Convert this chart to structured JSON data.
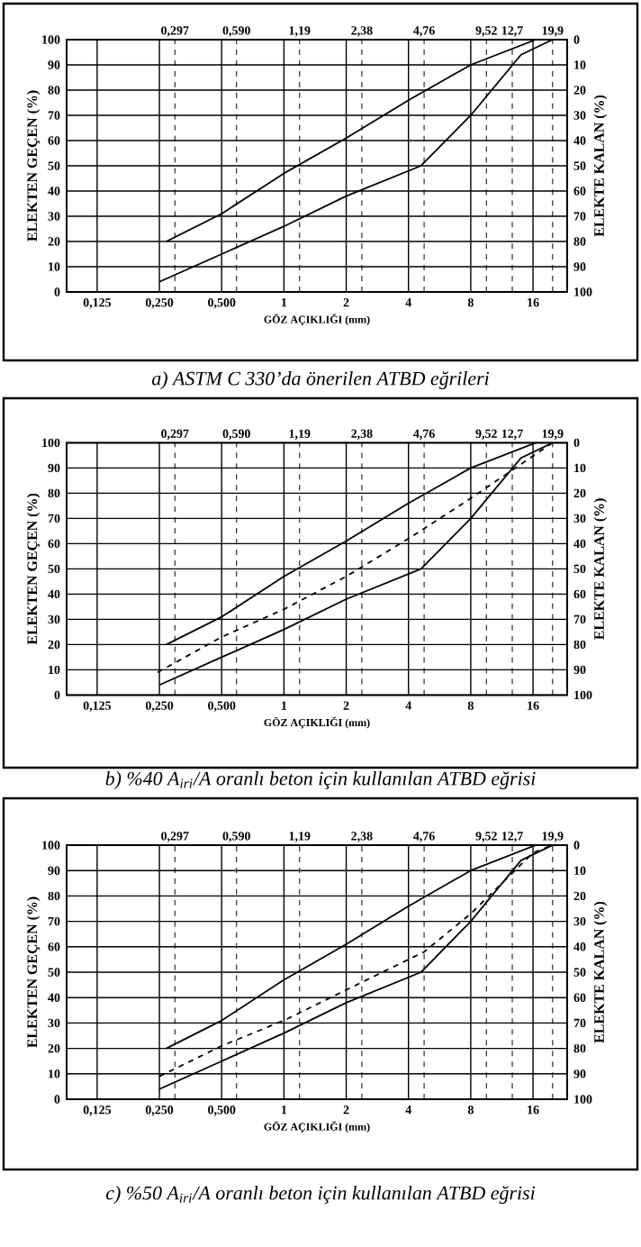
{
  "chart_data": [
    {
      "type": "line",
      "title": "a) ASTM C 330’da önerilen ATBD eğrileri",
      "xlabel": "GÖZ AÇIKLIĞI (mm)",
      "ylabel": "ELEKTEN GEÇEN (%)",
      "y2label": "ELEKTE KALAN (%)",
      "log": "x",
      "grid": true,
      "marker": "none",
      "xlim": [
        0.089,
        23.4
      ],
      "xticks": [
        {
          "value": 0.125,
          "label": "0,125"
        },
        {
          "value": 0.25,
          "label": "0,250"
        },
        {
          "value": 0.5,
          "label": "0,500"
        },
        1,
        2,
        4,
        8,
        16
      ],
      "ylim": [
        0,
        100
      ],
      "yticks": [
        0,
        10,
        20,
        30,
        40,
        50,
        60,
        70,
        80,
        90,
        100
      ],
      "y2lim": [
        100,
        0
      ],
      "y2ticks": [
        0,
        10,
        20,
        30,
        40,
        50,
        60,
        70,
        80,
        90,
        100
      ],
      "ref_lines": [
        {
          "axis": "x",
          "value": 0.297,
          "label": "0,297",
          "line_style": "dashed"
        },
        {
          "axis": "x",
          "value": 0.59,
          "label": "0,590",
          "line_style": "dashed"
        },
        {
          "axis": "x",
          "value": 1.19,
          "label": "1,19",
          "line_style": "dashed"
        },
        {
          "axis": "x",
          "value": 2.38,
          "label": "2,38",
          "line_style": "dashed"
        },
        {
          "axis": "x",
          "value": 4.76,
          "label": "4,76",
          "line_style": "dashed"
        },
        {
          "axis": "x",
          "value": 9.52,
          "label": "9,52",
          "line_style": "dashed"
        },
        {
          "axis": "x",
          "value": 12.7,
          "label": "12,7",
          "line_style": "dashed"
        },
        {
          "axis": "x",
          "value": 19.9,
          "label": "19,9",
          "line_style": "dashed"
        }
      ],
      "series": [
        {
          "color": "#000000",
          "line_style": "solid",
          "x": [
            0.27,
            0.5,
            1,
            2,
            4,
            8,
            16.5
          ],
          "values": [
            20,
            31,
            47,
            61,
            76,
            90,
            100
          ]
        },
        {
          "color": "#000000",
          "line_style": "solid",
          "x": [
            0.25,
            0.5,
            1,
            2,
            4.6,
            8,
            14,
            19.9
          ],
          "values": [
            4,
            15,
            26,
            38,
            50,
            70,
            94,
            100
          ]
        }
      ]
    },
    {
      "type": "line",
      "title": "b) %40 A$_{iri}$/A oranlı beton için kullanılan ATBD eğrisi",
      "xlabel": "GÖZ AÇIKLIĞI (mm)",
      "ylabel": "ELEKTEN GEÇEN (%)",
      "y2label": "ELEKTE KALAN (%)",
      "log": "x",
      "grid": true,
      "marker": "none",
      "xlim": [
        0.089,
        23.4
      ],
      "xticks": [
        {
          "value": 0.125,
          "label": "0,125"
        },
        {
          "value": 0.25,
          "label": "0,250"
        },
        {
          "value": 0.5,
          "label": "0,500"
        },
        1,
        2,
        4,
        8,
        16
      ],
      "ylim": [
        0,
        100
      ],
      "yticks": [
        0,
        10,
        20,
        30,
        40,
        50,
        60,
        70,
        80,
        90,
        100
      ],
      "y2lim": [
        100,
        0
      ],
      "y2ticks": [
        0,
        10,
        20,
        30,
        40,
        50,
        60,
        70,
        80,
        90,
        100
      ],
      "ref_lines": [
        {
          "axis": "x",
          "value": 0.297,
          "label": "0,297",
          "line_style": "dashed"
        },
        {
          "axis": "x",
          "value": 0.59,
          "label": "0,590",
          "line_style": "dashed"
        },
        {
          "axis": "x",
          "value": 1.19,
          "label": "1,19",
          "line_style": "dashed"
        },
        {
          "axis": "x",
          "value": 2.38,
          "label": "2,38",
          "line_style": "dashed"
        },
        {
          "axis": "x",
          "value": 4.76,
          "label": "4,76",
          "line_style": "dashed"
        },
        {
          "axis": "x",
          "value": 9.52,
          "label": "9,52",
          "line_style": "dashed"
        },
        {
          "axis": "x",
          "value": 12.7,
          "label": "12,7",
          "line_style": "dashed"
        },
        {
          "axis": "x",
          "value": 19.9,
          "label": "19,9",
          "line_style": "dashed"
        }
      ],
      "series": [
        {
          "color": "#000000",
          "line_style": "solid",
          "x": [
            0.27,
            0.5,
            1,
            2,
            4,
            8,
            16.5
          ],
          "values": [
            20,
            31,
            47,
            61,
            76,
            90,
            100
          ]
        },
        {
          "color": "#000000",
          "line_style": "dashed",
          "x": [
            0.245,
            0.5,
            1,
            2,
            4,
            8,
            19.9
          ],
          "values": [
            9,
            23,
            34,
            47,
            62,
            78,
            100
          ]
        },
        {
          "color": "#000000",
          "line_style": "solid",
          "x": [
            0.25,
            0.5,
            1,
            2,
            4.6,
            8,
            14,
            19.9
          ],
          "values": [
            4,
            15,
            26,
            38,
            50,
            70,
            94,
            100
          ]
        }
      ]
    },
    {
      "type": "line",
      "title": "c) %50 A$_{iri}$/A oranlı beton için kullanılan ATBD eğrisi",
      "xlabel": "GÖZ AÇIKLIĞI (mm)",
      "ylabel": "ELEKTEN GEÇEN (%)",
      "y2label": "ELEKTE KALAN (%)",
      "log": "x",
      "grid": true,
      "marker": "none",
      "xlim": [
        0.089,
        23.4
      ],
      "xticks": [
        {
          "value": 0.125,
          "label": "0,125"
        },
        {
          "value": 0.25,
          "label": "0,250"
        },
        {
          "value": 0.5,
          "label": "0,500"
        },
        1,
        2,
        4,
        8,
        16
      ],
      "ylim": [
        0,
        100
      ],
      "yticks": [
        0,
        10,
        20,
        30,
        40,
        50,
        60,
        70,
        80,
        90,
        100
      ],
      "y2lim": [
        100,
        0
      ],
      "y2ticks": [
        0,
        10,
        20,
        30,
        40,
        50,
        60,
        70,
        80,
        90,
        100
      ],
      "ref_lines": [
        {
          "axis": "x",
          "value": 0.297,
          "label": "0,297",
          "line_style": "dashed"
        },
        {
          "axis": "x",
          "value": 0.59,
          "label": "0,590",
          "line_style": "dashed"
        },
        {
          "axis": "x",
          "value": 1.19,
          "label": "1,19",
          "line_style": "dashed"
        },
        {
          "axis": "x",
          "value": 2.38,
          "label": "2,38",
          "line_style": "dashed"
        },
        {
          "axis": "x",
          "value": 4.76,
          "label": "4,76",
          "line_style": "dashed"
        },
        {
          "axis": "x",
          "value": 9.52,
          "label": "9,52",
          "line_style": "dashed"
        },
        {
          "axis": "x",
          "value": 12.7,
          "label": "12,7",
          "line_style": "dashed"
        },
        {
          "axis": "x",
          "value": 19.9,
          "label": "19,9",
          "line_style": "dashed"
        }
      ],
      "series": [
        {
          "color": "#000000",
          "line_style": "solid",
          "x": [
            0.27,
            0.5,
            1,
            2,
            4,
            8,
            16.5
          ],
          "values": [
            20,
            31,
            47,
            61,
            76,
            90,
            100
          ]
        },
        {
          "color": "#000000",
          "line_style": "dashed",
          "x": [
            0.25,
            0.5,
            1,
            2,
            4.76,
            8,
            16,
            19.9
          ],
          "values": [
            9,
            21,
            31,
            43,
            58,
            73,
            97,
            100
          ]
        },
        {
          "color": "#000000",
          "line_style": "solid",
          "x": [
            0.25,
            0.5,
            1,
            2,
            4.6,
            8,
            14,
            19.9
          ],
          "values": [
            4,
            15,
            26,
            38,
            50,
            70,
            94,
            100
          ]
        }
      ]
    }
  ]
}
